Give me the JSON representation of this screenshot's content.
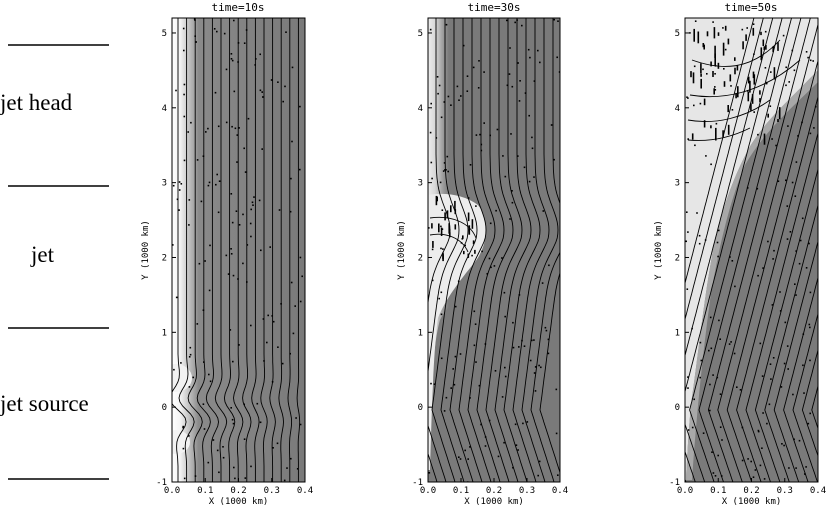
{
  "regions": [
    {
      "label": "jet head"
    },
    {
      "label": "jet"
    },
    {
      "label": "jet source"
    }
  ],
  "panels": [
    {
      "title": "time=10s"
    },
    {
      "title": "time=30s"
    },
    {
      "title": "time=50s"
    }
  ],
  "axes": {
    "xlabel": "X (1000 km)",
    "ylabel": "Y (1000 km)",
    "xticks": [
      "0.0",
      "0.1",
      "0.2",
      "0.3",
      "0.4"
    ],
    "yticks": [
      "-1",
      "0",
      "1",
      "2",
      "3",
      "4",
      "5"
    ],
    "xrange": [
      0.0,
      0.4
    ],
    "yrange": [
      -1,
      5.2
    ]
  },
  "colors": {
    "field_dark": "#7a7a7a",
    "field_light": "#e6e6e6",
    "field_lines": "#000000"
  }
}
